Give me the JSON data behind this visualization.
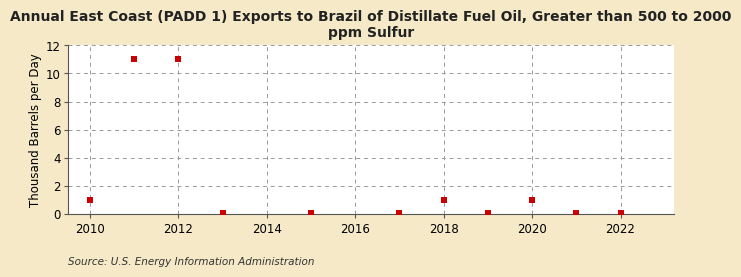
{
  "title": "Annual East Coast (PADD 1) Exports to Brazil of Distillate Fuel Oil, Greater than 500 to 2000\nppm Sulfur",
  "ylabel": "Thousand Barrels per Day",
  "source": "Source: U.S. Energy Information Administration",
  "background_color": "#f5e9c8",
  "plot_bg_color": "#ffffff",
  "marker_color": "#cc0000",
  "data_years": [
    2010,
    2011,
    2012,
    2013,
    2015,
    2017,
    2018,
    2019,
    2020,
    2021,
    2022
  ],
  "data_values": [
    1,
    11,
    11,
    0.07,
    0.07,
    0.07,
    1,
    0.07,
    1,
    0.07,
    0.07
  ],
  "xlim": [
    2009.5,
    2023.2
  ],
  "ylim": [
    0,
    12
  ],
  "yticks": [
    0,
    2,
    4,
    6,
    8,
    10,
    12
  ],
  "xticks": [
    2010,
    2012,
    2014,
    2016,
    2018,
    2020,
    2022
  ],
  "grid_color": "#999999",
  "grid_style": "--",
  "title_fontsize": 10,
  "axis_label_fontsize": 8.5,
  "tick_fontsize": 8.5,
  "source_fontsize": 7.5
}
